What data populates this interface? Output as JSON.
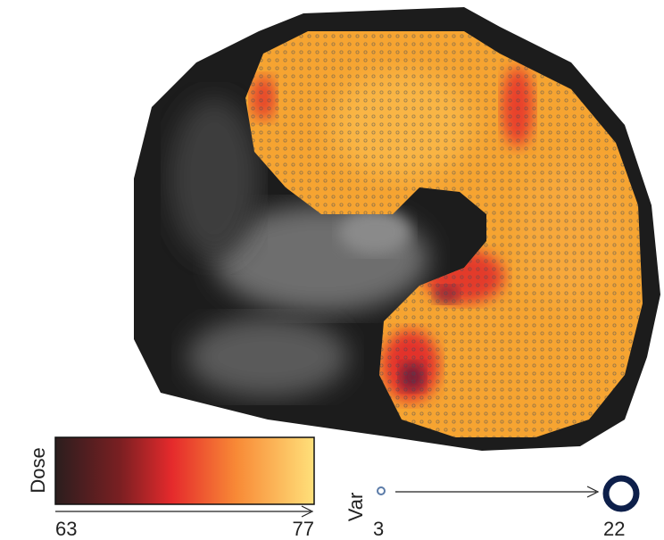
{
  "colorbar": {
    "label": "Dose",
    "min": 63,
    "max": 77
  },
  "variance_legend": {
    "label": "Var",
    "min": 3,
    "max": 22
  }
}
